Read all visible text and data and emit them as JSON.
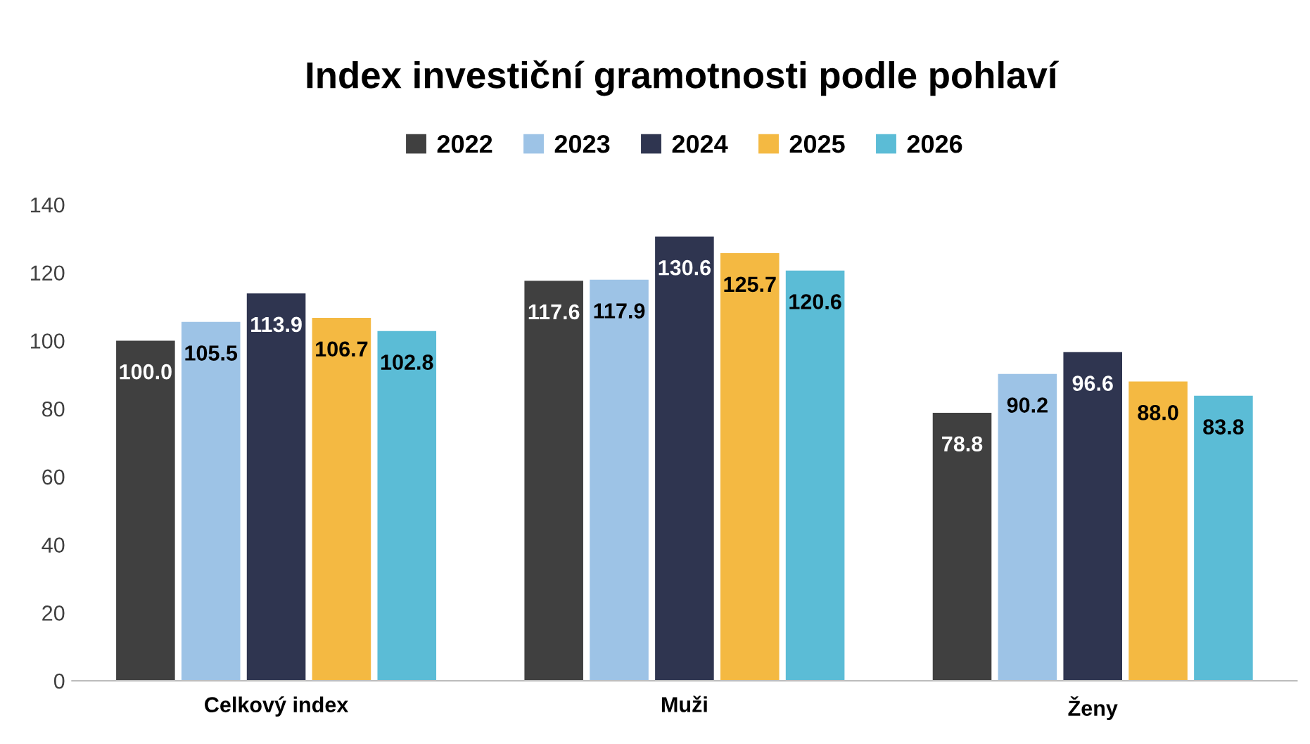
{
  "chart_data": {
    "type": "bar",
    "title": "Index investiční gramotnosti podle pohlaví",
    "categories": [
      "Celkový index",
      "Muži",
      "Ženy"
    ],
    "series": [
      {
        "name": "2022",
        "color": "#404040",
        "values": [
          100.0,
          117.6,
          78.8
        ],
        "value_labels": [
          "100.0",
          "117.6",
          "78.8"
        ]
      },
      {
        "name": "2023",
        "color": "#9dc3e6",
        "values": [
          105.5,
          117.9,
          90.2
        ],
        "value_labels": [
          "105.5",
          "117.9",
          "90.2"
        ]
      },
      {
        "name": "2024",
        "color": "#2f3550",
        "values": [
          113.9,
          130.6,
          96.6
        ],
        "value_labels": [
          "113.9",
          "130.6",
          "96.6"
        ]
      },
      {
        "name": "2025",
        "color": "#f4b942",
        "values": [
          106.7,
          125.7,
          88.0
        ],
        "value_labels": [
          "106.7",
          "125.7",
          "88.0"
        ]
      },
      {
        "name": "2026",
        "color": "#5bbcd6",
        "values": [
          102.8,
          120.6,
          83.8
        ],
        "value_labels": [
          "102.8",
          "120.6",
          "83.8"
        ]
      }
    ],
    "ylim": [
      0,
      140
    ],
    "yticks": [
      0,
      20,
      40,
      60,
      80,
      100,
      120,
      140
    ],
    "legend": "top"
  }
}
